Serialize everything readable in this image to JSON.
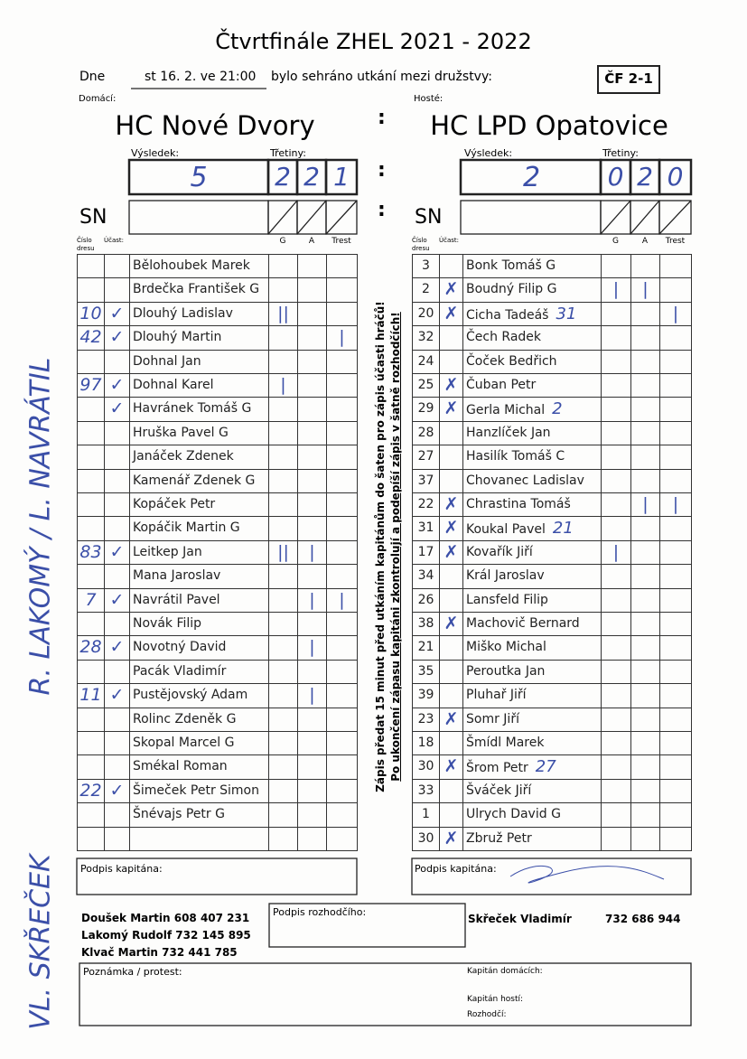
{
  "header": {
    "title": "Čtvrtfinále ZHEL 2021 - 2022",
    "date_label": "Dne",
    "date": "st 16. 2. ve 21:00",
    "played_text": "bylo sehráno utkání mezi družstvy:",
    "code": "ČF 2-1"
  },
  "columns": {
    "number": "Číslo dresu",
    "attendance": "Účast:",
    "g": "G",
    "a": "A",
    "penalty": "Trest"
  },
  "home": {
    "label": "Domácí:",
    "team": "HC Nové Dvory",
    "result_label": "Výsledek:",
    "periods_label": "Třetiny:",
    "score": "5",
    "periods": [
      "2",
      "2",
      "1"
    ],
    "sn": "SN",
    "players": [
      {
        "name": "Bělohoubek Marek"
      },
      {
        "name": "Brdečka František G"
      },
      {
        "number": "10",
        "attendance": "✓",
        "name": "Dlouhý Ladislav",
        "g": "||"
      },
      {
        "number": "42",
        "attendance": "✓",
        "name": "Dlouhý Martin",
        "penalty": "|"
      },
      {
        "name": "Dohnal Jan"
      },
      {
        "number": "97",
        "attendance": "✓",
        "name": "Dohnal Karel",
        "g": "|"
      },
      {
        "attendance": "✓",
        "name": "Havránek Tomáš G"
      },
      {
        "name": "Hruška Pavel G"
      },
      {
        "name": "Janáček Zdenek"
      },
      {
        "name": "Kamenář Zdenek G"
      },
      {
        "name": "Kopáček Petr"
      },
      {
        "name": "Kopáčik Martin G"
      },
      {
        "number": "83",
        "attendance": "✓",
        "name": "Leitkep Jan",
        "g": "||",
        "a": "|"
      },
      {
        "name": "Mana Jaroslav"
      },
      {
        "number": "7",
        "attendance": "✓",
        "name": "Navrátil Pavel",
        "a": "|",
        "penalty": "|"
      },
      {
        "name": "Novák Filip"
      },
      {
        "number": "28",
        "attendance": "✓",
        "name": "Novotný David",
        "a": "|"
      },
      {
        "name": "Pacák Vladimír"
      },
      {
        "number": "11",
        "attendance": "✓",
        "name": "Pustějovský Adam",
        "a": "|"
      },
      {
        "name": "Rolinc Zdeněk G"
      },
      {
        "name": "Skopal Marcel G"
      },
      {
        "name": "Smékal Roman"
      },
      {
        "number": "22",
        "attendance": "✓",
        "name": "Šimeček Petr Simon"
      },
      {
        "name": "Šnévajs Petr G"
      }
    ]
  },
  "guest": {
    "label": "Hosté:",
    "team": "HC LPD Opatovice",
    "result_label": "Výsledek:",
    "periods_label": "Třetiny:",
    "score": "2",
    "periods": [
      "0",
      "2",
      "0"
    ],
    "sn": "SN",
    "players": [
      {
        "number": "3",
        "name": "Bonk Tomáš G"
      },
      {
        "number": "2",
        "attendance": "✗",
        "name": "Boudný Filip G",
        "g": "|",
        "a": "|"
      },
      {
        "number": "20",
        "attendance": "✗",
        "name": "Cicha Tadeáš",
        "note": "31",
        "penalty": "|"
      },
      {
        "number": "32",
        "name": "Čech Radek"
      },
      {
        "number": "24",
        "name": "Čoček Bedřich"
      },
      {
        "number": "25",
        "attendance": "✗",
        "name": "Čuban Petr"
      },
      {
        "number": "29",
        "attendance": "✗",
        "name": "Gerla Michal",
        "note": "2"
      },
      {
        "number": "28",
        "name": "Hanzlíček Jan"
      },
      {
        "number": "27",
        "name": "Hasilík Tomáš C"
      },
      {
        "number": "37",
        "name": "Chovanec Ladislav"
      },
      {
        "number": "22",
        "attendance": "✗",
        "name": "Chrastina Tomáš",
        "a": "|",
        "penalty": "|"
      },
      {
        "number": "31",
        "attendance": "✗",
        "name": "Koukal Pavel",
        "note": "21"
      },
      {
        "number": "17",
        "attendance": "✗",
        "name": "Kovařík Jiří",
        "g": "|"
      },
      {
        "number": "34",
        "name": "Král Jaroslav"
      },
      {
        "number": "26",
        "name": "Lansfeld Filip"
      },
      {
        "number": "38",
        "attendance": "✗",
        "name": "Machovič Bernard"
      },
      {
        "number": "21",
        "name": "Miško Michal"
      },
      {
        "number": "35",
        "name": "Peroutka Jan"
      },
      {
        "number": "39",
        "name": "Pluhař Jiří"
      },
      {
        "number": "23",
        "attendance": "✗",
        "name": "Somr Jiří"
      },
      {
        "number": "18",
        "name": "Šmídl Marek"
      },
      {
        "number": "30",
        "attendance": "✗",
        "name": "Šrom Petr",
        "note": "27"
      },
      {
        "number": "33",
        "name": "Šváček Jiří"
      },
      {
        "number": "1",
        "name": "Ulrych David G"
      },
      {
        "number": "30",
        "attendance": "✗",
        "name": "Zbruž Petr"
      }
    ]
  },
  "instructions": [
    "Zápis předat 15 minut před utkáním kapitánům do šaten pro zápis účasti hráčů!",
    "Po ukončení zápasu kapitáni zkontrolují a podepíší zápis v šatně rozhodčích!"
  ],
  "handwritten": {
    "captains": "R. LAKOMÝ / L. NAVRÁTIL",
    "referee": "VL. SKŘEČEK"
  },
  "footer": {
    "captain_sign_home": "Podpis kapitána:",
    "captain_sign_guest": "Podpis kapitána:",
    "contacts": [
      "Doušek Martin 608 407 231",
      "Lakomý Rudolf 732 145 895",
      "Klvač Martin 732 441 785"
    ],
    "referee_sign": "Podpis rozhodčího:",
    "referee_name": "Skřeček Vladimír",
    "referee_phone": "732 686 944",
    "note_label": "Poznámka / protest:",
    "home_captain": "Kapitán domácích:",
    "guest_captain": "Kapitán hostí:",
    "referee": "Rozhodčí:"
  }
}
